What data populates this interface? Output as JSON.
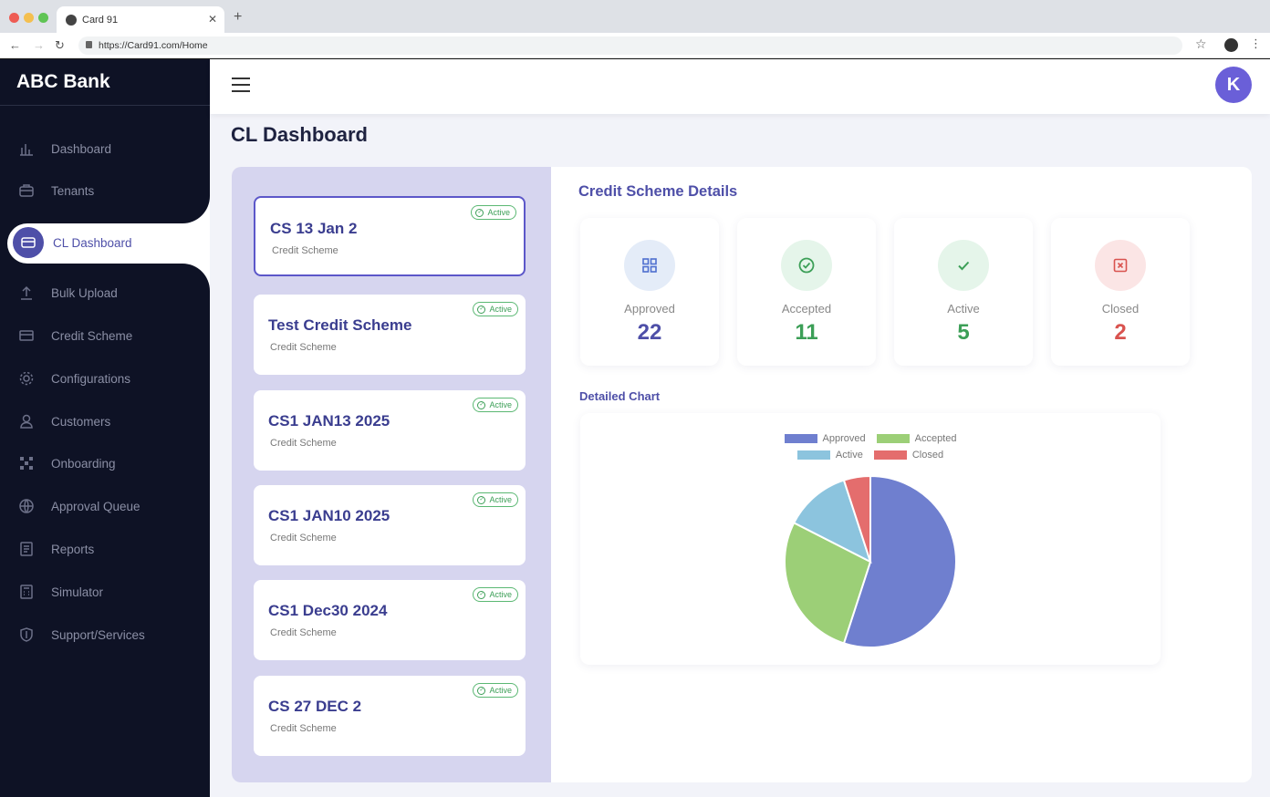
{
  "browser": {
    "tab_title": "Card 91",
    "url": "https://Card91.com/Home"
  },
  "sidebar": {
    "brand": "ABC Bank",
    "items": [
      {
        "label": "Dashboard",
        "icon": "bar-chart-icon"
      },
      {
        "label": "Tenants",
        "icon": "briefcase-icon"
      },
      {
        "label": "CL Dashboard",
        "icon": "card-icon",
        "active": true
      },
      {
        "label": "Bulk Upload",
        "icon": "upload-icon"
      },
      {
        "label": "Credit Scheme",
        "icon": "card-icon"
      },
      {
        "label": "Configurations",
        "icon": "gear-icon"
      },
      {
        "label": "Customers",
        "icon": "user-icon"
      },
      {
        "label": "Onboarding",
        "icon": "grid-icon"
      },
      {
        "label": "Approval Queue",
        "icon": "globe-icon"
      },
      {
        "label": "Reports",
        "icon": "document-icon"
      },
      {
        "label": "Simulator",
        "icon": "calculator-icon"
      },
      {
        "label": "Support/Services",
        "icon": "shield-icon"
      }
    ]
  },
  "header": {
    "avatar_initial": "K"
  },
  "page": {
    "title": "CL Dashboard"
  },
  "schemes": [
    {
      "name": "CS 13 Jan 2",
      "subtitle": "Credit Scheme",
      "status": "Active",
      "selected": true
    },
    {
      "name": "Test Credit Scheme",
      "subtitle": "Credit Scheme",
      "status": "Active"
    },
    {
      "name": "CS1 JAN13 2025",
      "subtitle": "Credit Scheme",
      "status": "Active"
    },
    {
      "name": "CS1 JAN10 2025",
      "subtitle": "Credit Scheme",
      "status": "Active"
    },
    {
      "name": "CS1 Dec30 2024",
      "subtitle": "Credit Scheme",
      "status": "Active"
    },
    {
      "name": "CS 27 DEC 2",
      "subtitle": "Credit Scheme",
      "status": "Active"
    }
  ],
  "details": {
    "title": "Credit Scheme Details",
    "stats": [
      {
        "label": "Approved",
        "value": "22",
        "color": "#4e4fa8",
        "icon": "grid-icon",
        "bg": "#e4ecf8"
      },
      {
        "label": "Accepted",
        "value": "11",
        "color": "#3c9f57",
        "icon": "check-circle-icon",
        "bg": "#e5f5ea"
      },
      {
        "label": "Active",
        "value": "5",
        "color": "#3c9f57",
        "icon": "check-icon",
        "bg": "#e5f5ea"
      },
      {
        "label": "Closed",
        "value": "2",
        "color": "#d9534f",
        "icon": "close-box-icon",
        "bg": "#fbe5e5"
      }
    ],
    "chart_title": "Detailed Chart"
  },
  "chart_data": {
    "type": "pie",
    "categories": [
      "Approved",
      "Accepted",
      "Active",
      "Closed"
    ],
    "values": [
      22,
      11,
      5,
      2
    ],
    "colors": [
      "#6f7fcf",
      "#9ccf77",
      "#8cc4de",
      "#e46d6d"
    ],
    "legend": "top"
  }
}
